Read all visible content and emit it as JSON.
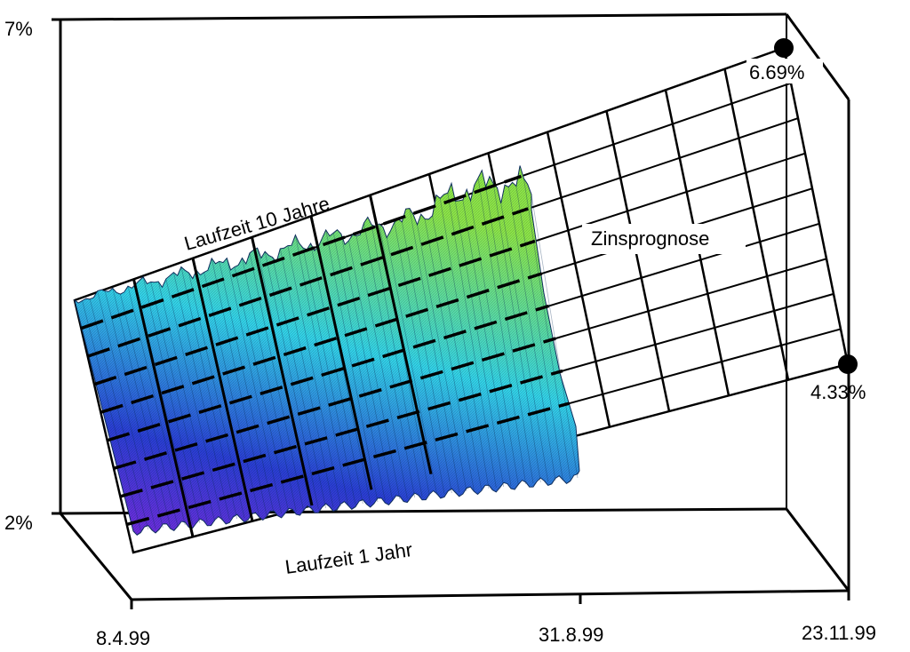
{
  "chart_data": {
    "type": "surface",
    "z_ticks": [
      "7%",
      "2%"
    ],
    "zlim_percent": [
      2,
      7
    ],
    "x_ticks": [
      "8.4.99",
      "31.8.99",
      "23.11.99"
    ],
    "series_labels": {
      "long_term": "Laufzeit 10 Jahre",
      "short_term": "Laufzeit 1 Jahr",
      "forecast": "Zinsprognose"
    },
    "forecast_endpoints": [
      {
        "maturity": "10 Jahre",
        "date": "23.11.99",
        "value_label": "6.69%",
        "value": 6.69
      },
      {
        "maturity": "1 Jahr",
        "date": "23.11.99",
        "value_label": "4.33%",
        "value": 4.33
      }
    ],
    "colormap": [
      "#7a2be0",
      "#2a3fd6",
      "#33d4ea",
      "#8de64a"
    ]
  }
}
